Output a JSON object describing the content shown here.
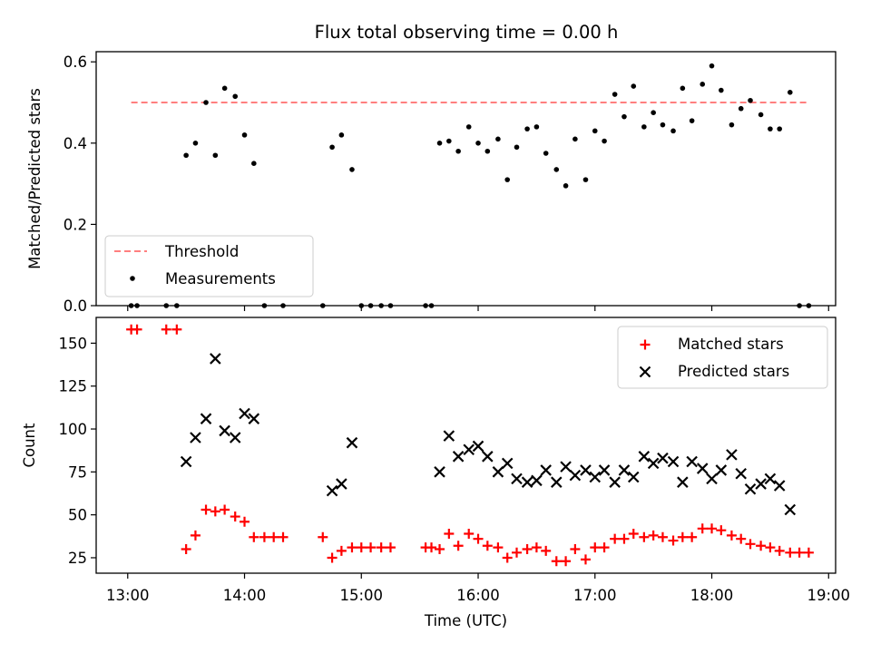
{
  "figure_title": "Flux total observing time = 0.00 h",
  "colors": {
    "threshold": "#ff7f7f",
    "matched": "#ff0000",
    "predicted": "#000000",
    "measurement": "#000000"
  },
  "chart_data": [
    {
      "type": "scatter",
      "panel": "top",
      "ylabel": "Matched/Predicted stars",
      "xlim": [
        12.73,
        19.06
      ],
      "ylim": [
        0,
        0.625
      ],
      "yticks": [
        0,
        0.2,
        0.4,
        0.6
      ],
      "ytick_labels": [
        "0.0",
        "0.2",
        "0.4",
        "0.6"
      ],
      "xticks": [
        13,
        14,
        15,
        16,
        17,
        18,
        19
      ],
      "show_x_tick_labels": false,
      "legend_position": "lower-left",
      "legend": [
        "Threshold",
        "Measurements"
      ],
      "threshold": {
        "name": "Threshold",
        "style": "dashed",
        "x": [
          13.03,
          18.82
        ],
        "y": 0.5
      },
      "series": [
        {
          "name": "Measurements",
          "marker": "dot",
          "x": [
            13.03,
            13.08,
            13.33,
            13.42,
            13.5,
            13.58,
            13.67,
            13.75,
            13.83,
            13.92,
            14.0,
            14.08,
            14.17,
            14.33,
            14.67,
            14.75,
            14.83,
            14.92,
            15.0,
            15.08,
            15.17,
            15.25,
            15.55,
            15.6,
            15.67,
            15.75,
            15.83,
            15.92,
            16.0,
            16.08,
            16.17,
            16.25,
            16.33,
            16.42,
            16.5,
            16.58,
            16.67,
            16.75,
            16.83,
            16.92,
            17.0,
            17.08,
            17.17,
            17.25,
            17.33,
            17.42,
            17.5,
            17.58,
            17.67,
            17.75,
            17.83,
            17.92,
            18.0,
            18.08,
            18.17,
            18.25,
            18.33,
            18.42,
            18.5,
            18.58,
            18.67,
            18.75,
            18.83
          ],
          "y": [
            0.0,
            0.0,
            0.0,
            0.0,
            0.37,
            0.4,
            0.5,
            0.37,
            0.535,
            0.515,
            0.42,
            0.35,
            0.0,
            0.0,
            0.0,
            0.39,
            0.42,
            0.335,
            0.0,
            0.0,
            0.0,
            0.0,
            0.0,
            0.0,
            0.4,
            0.405,
            0.38,
            0.44,
            0.4,
            0.38,
            0.41,
            0.31,
            0.39,
            0.435,
            0.44,
            0.375,
            0.335,
            0.295,
            0.41,
            0.31,
            0.43,
            0.405,
            0.52,
            0.465,
            0.54,
            0.44,
            0.475,
            0.445,
            0.43,
            0.535,
            0.455,
            0.545,
            0.59,
            0.53,
            0.445,
            0.485,
            0.505,
            0.47,
            0.435,
            0.435,
            0.525,
            0.0,
            0.0
          ]
        }
      ]
    },
    {
      "type": "scatter",
      "panel": "bottom",
      "xlabel": "Time (UTC)",
      "ylabel": "Count",
      "xlim": [
        12.73,
        19.06
      ],
      "ylim": [
        16,
        165
      ],
      "yticks": [
        25,
        50,
        75,
        100,
        125,
        150
      ],
      "ytick_labels": [
        "25",
        "50",
        "75",
        "100",
        "125",
        "150"
      ],
      "xticks": [
        13,
        14,
        15,
        16,
        17,
        18,
        19
      ],
      "xtick_labels": [
        "13:00",
        "14:00",
        "15:00",
        "16:00",
        "17:00",
        "18:00",
        "19:00"
      ],
      "legend_position": "top-right",
      "legend": [
        "Matched stars",
        "Predicted stars"
      ],
      "series": [
        {
          "name": "Matched stars",
          "marker": "plus",
          "x": [
            13.03,
            13.08,
            13.33,
            13.42,
            13.5,
            13.58,
            13.67,
            13.75,
            13.83,
            13.92,
            14.0,
            14.08,
            14.17,
            14.25,
            14.33,
            14.67,
            14.75,
            14.83,
            14.92,
            15.0,
            15.08,
            15.17,
            15.25,
            15.55,
            15.6,
            15.67,
            15.75,
            15.83,
            15.92,
            16.0,
            16.08,
            16.17,
            16.25,
            16.33,
            16.42,
            16.5,
            16.58,
            16.67,
            16.75,
            16.83,
            16.92,
            17.0,
            17.08,
            17.17,
            17.25,
            17.33,
            17.42,
            17.5,
            17.58,
            17.67,
            17.75,
            17.83,
            17.92,
            18.0,
            18.08,
            18.17,
            18.25,
            18.33,
            18.42,
            18.5,
            18.58,
            18.67,
            18.75,
            18.83
          ],
          "y": [
            158,
            158,
            158,
            158,
            30,
            38,
            53,
            52,
            53,
            49,
            46,
            37,
            37,
            37,
            37,
            37,
            25,
            29,
            31,
            31,
            31,
            31,
            31,
            31,
            31,
            30,
            39,
            32,
            39,
            36,
            32,
            31,
            25,
            28,
            30,
            31,
            29,
            23,
            23,
            30,
            24,
            31,
            31,
            36,
            36,
            39,
            37,
            38,
            37,
            35,
            37,
            37,
            42,
            42,
            41,
            38,
            36,
            33,
            32,
            31,
            29,
            28,
            28,
            28
          ]
        },
        {
          "name": "Predicted stars",
          "marker": "x",
          "x": [
            13.5,
            13.58,
            13.67,
            13.75,
            13.83,
            13.92,
            14.0,
            14.08,
            14.75,
            14.83,
            14.92,
            15.67,
            15.75,
            15.83,
            15.92,
            16.0,
            16.08,
            16.17,
            16.25,
            16.33,
            16.42,
            16.5,
            16.58,
            16.67,
            16.75,
            16.83,
            16.92,
            17.0,
            17.08,
            17.17,
            17.25,
            17.33,
            17.42,
            17.5,
            17.58,
            17.67,
            17.75,
            17.83,
            17.92,
            18.0,
            18.08,
            18.17,
            18.25,
            18.33,
            18.42,
            18.5,
            18.58,
            18.67
          ],
          "y": [
            81,
            95,
            106,
            141,
            99,
            95,
            109,
            106,
            64,
            68,
            92,
            75,
            96,
            84,
            88,
            90,
            84,
            75,
            80,
            71,
            69,
            70,
            76,
            69,
            78,
            73,
            76,
            72,
            76,
            69,
            76,
            72,
            84,
            80,
            83,
            81,
            69,
            81,
            77,
            71,
            76,
            85,
            74,
            65,
            68,
            71,
            67,
            53
          ]
        }
      ]
    }
  ]
}
